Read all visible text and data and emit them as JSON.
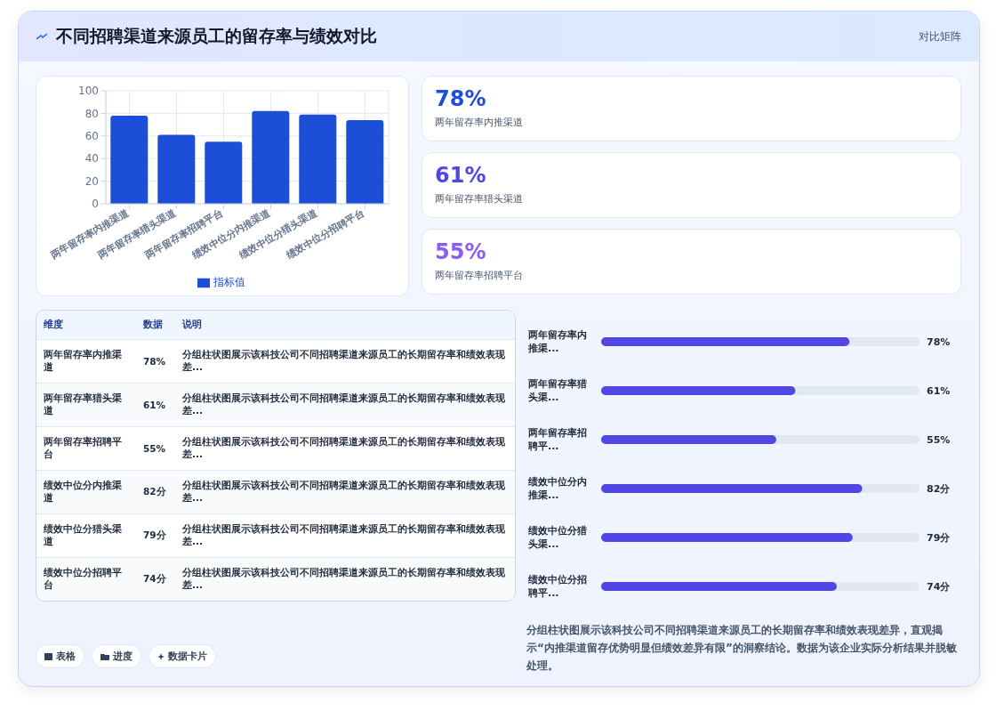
{
  "chart_data": [
    {
      "type": "bar",
      "title": "不同招聘渠道来源员工的留存率与绩效对比",
      "annotations": [
        "对比矩阵"
      ],
      "categories": [
        "两年留存率内推渠道",
        "两年留存率猎头渠道",
        "两年留存率招聘平台",
        "绩效中位分内推渠道",
        "绩效中位分猎头渠道",
        "绩效中位分招聘平台"
      ],
      "series": [
        {
          "name": "指标值",
          "color": "#1d4ed8",
          "values": [
            78,
            61,
            55,
            82,
            79,
            74
          ]
        }
      ],
      "ylim": [
        0,
        100
      ],
      "yticks": [
        0,
        20,
        40,
        60,
        80,
        100
      ],
      "grid": true,
      "legend": "bottom"
    },
    {
      "type": "other",
      "categories": [
        "两年留存率内推渠道",
        "两年留存率猎头渠道",
        "两年留存率招聘平台"
      ],
      "value_labels": [
        "78%",
        "61%",
        "55%"
      ],
      "annotations": [
        "表格",
        "进度",
        "数据卡片"
      ]
    },
    {
      "type": "other",
      "categories": [
        "两年留存率内推渠道",
        "两年留存率猎头渠道",
        "两年留存率招聘平台",
        "绩效中位分内推渠道",
        "绩效中位分猎头渠道",
        "绩效中位分招聘平台"
      ],
      "values": [
        78,
        61,
        55,
        82,
        79,
        74
      ],
      "value_labels": [
        "78%",
        "61%",
        "55%",
        "82分",
        "79分",
        "74分"
      ],
      "annotations": [
        "维度",
        "数据",
        "说明",
        "分组柱状图展示该科技公司不同招聘渠道来源员工的长期留存率和绩效表现差...",
        "分组柱状图展示该科技公司不同招聘渠道来源员工的长期留存率和绩效表现差...",
        "分组柱状图展示该科技公司不同招聘渠道来源员工的长期留存率和绩效表现差...",
        "分组柱状图展示该科技公司不同招聘渠道来源员工的长期留存率和绩效表现差...",
        "分组柱状图展示该科技公司不同招聘渠道来源员工的长期留存率和绩效表现差...",
        "分组柱状图展示该科技公司不同招聘渠道来源员工的长期留存率和绩效表现差..."
      ]
    },
    {
      "type": "bar",
      "orientation": "horizontal",
      "categories": [
        "两年留存率内推渠...",
        "两年留存率猎头渠...",
        "两年留存率招聘平...",
        "绩效中位分内推渠...",
        "绩效中位分猎头渠...",
        "绩效中位分招聘平..."
      ],
      "values": [
        78,
        61,
        55,
        82,
        79,
        74
      ],
      "value_labels": [
        "78%",
        "61%",
        "55%",
        "82分",
        "79分",
        "74分"
      ],
      "color": "#4f46e5",
      "xlim": [
        0,
        100
      ],
      "tick_labels": "y",
      "annotations": [
        "分组柱状图展示该科技公司不同招聘渠道来源员工的长期留存率和绩效表现差异，直观揭示“内推渠道留存优势明显但绩效差异有限”的洞察结论。数据为该企业实际分析结果并脱敏处理。"
      ]
    }
  ]
}
